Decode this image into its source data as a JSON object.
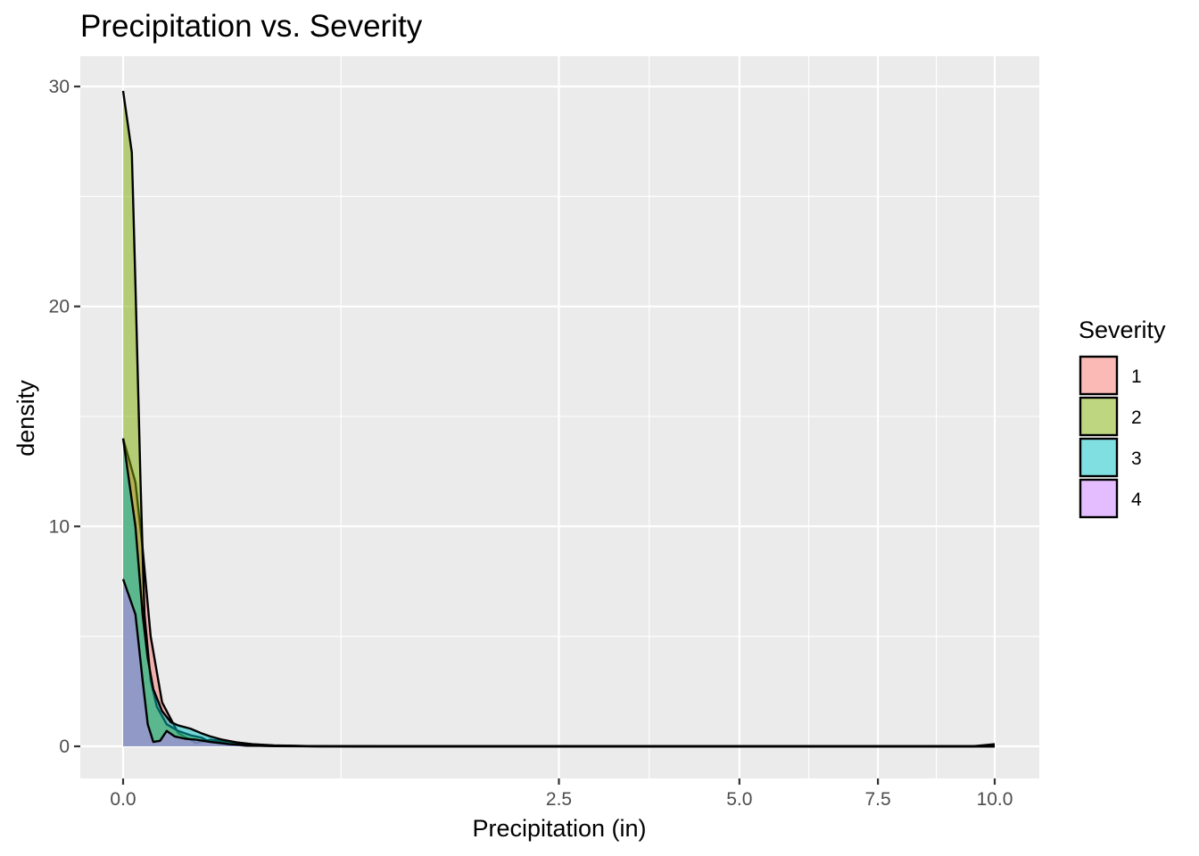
{
  "chart_data": {
    "type": "area",
    "subtype": "density",
    "title": "Precipitation vs. Severity",
    "xlabel": "Precipitation (in)",
    "ylabel": "density",
    "x_scale": "sqrt",
    "xlim": [
      0,
      10.2
    ],
    "ylim": [
      -1.4,
      31
    ],
    "x_ticks": [
      0,
      2.5,
      5.0,
      7.5,
      10.0
    ],
    "x_tick_labels": [
      "0.0",
      "2.5",
      "5.0",
      "7.5",
      "10.0"
    ],
    "y_ticks": [
      0,
      10,
      20,
      30
    ],
    "y_tick_labels": [
      "0",
      "10",
      "20",
      "30"
    ],
    "grid": true,
    "panel_background": "#ebebeb",
    "legend": {
      "title": "Severity",
      "position": "right",
      "entries": [
        "1",
        "2",
        "3",
        "4"
      ]
    },
    "series": [
      {
        "name": "1",
        "color": "#f8766d",
        "points": [
          [
            0,
            14.0
          ],
          [
            0.002,
            12.0
          ],
          [
            0.005,
            9.0
          ],
          [
            0.01,
            5.0
          ],
          [
            0.02,
            2.0
          ],
          [
            0.04,
            0.6
          ],
          [
            0.07,
            0.15
          ],
          [
            0.1,
            0.3
          ],
          [
            0.15,
            0.2
          ],
          [
            0.2,
            0.1
          ],
          [
            0.3,
            0.03
          ],
          [
            0.5,
            0
          ],
          [
            10.0,
            0
          ]
        ]
      },
      {
        "name": "2",
        "color": "#7cae00",
        "points": [
          [
            0,
            29.8
          ],
          [
            0.001,
            27.0
          ],
          [
            0.002,
            21.0
          ],
          [
            0.004,
            12.0
          ],
          [
            0.006,
            6.0
          ],
          [
            0.01,
            3.0
          ],
          [
            0.015,
            1.8
          ],
          [
            0.025,
            1.0
          ],
          [
            0.04,
            0.7
          ],
          [
            0.06,
            0.5
          ],
          [
            0.08,
            0.4
          ],
          [
            0.1,
            0.2
          ],
          [
            0.15,
            0.08
          ],
          [
            0.2,
            0.03
          ],
          [
            0.4,
            0.01
          ],
          [
            1.0,
            0
          ],
          [
            9.5,
            0
          ],
          [
            10.0,
            0.1
          ]
        ]
      },
      {
        "name": "3",
        "color": "#00bfc4",
        "points": [
          [
            0,
            14.0
          ],
          [
            0.002,
            10.0
          ],
          [
            0.005,
            6.0
          ],
          [
            0.008,
            4.0
          ],
          [
            0.012,
            2.6
          ],
          [
            0.02,
            1.6
          ],
          [
            0.03,
            1.1
          ],
          [
            0.04,
            0.95
          ],
          [
            0.06,
            0.8
          ],
          [
            0.08,
            0.6
          ],
          [
            0.1,
            0.45
          ],
          [
            0.13,
            0.3
          ],
          [
            0.17,
            0.18
          ],
          [
            0.22,
            0.1
          ],
          [
            0.3,
            0.04
          ],
          [
            0.45,
            0.01
          ],
          [
            0.7,
            0
          ],
          [
            10.0,
            0
          ]
        ]
      },
      {
        "name": "4",
        "color": "#c77cff",
        "points": [
          [
            0,
            7.6
          ],
          [
            0.002,
            6.0
          ],
          [
            0.005,
            3.0
          ],
          [
            0.008,
            1.0
          ],
          [
            0.012,
            0.2
          ],
          [
            0.018,
            0.25
          ],
          [
            0.025,
            0.7
          ],
          [
            0.035,
            0.45
          ],
          [
            0.05,
            0.35
          ],
          [
            0.07,
            0.3
          ],
          [
            0.1,
            0.2
          ],
          [
            0.15,
            0.1
          ],
          [
            0.2,
            0.05
          ],
          [
            0.3,
            0.01
          ],
          [
            0.5,
            0
          ],
          [
            10.0,
            0
          ]
        ]
      }
    ]
  }
}
